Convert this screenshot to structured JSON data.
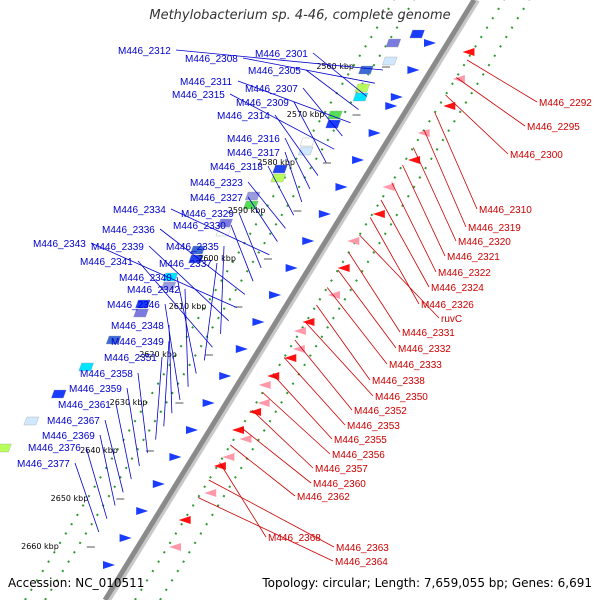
{
  "title": "Methylobacterium sp. 4-46, complete genome",
  "footer": {
    "accession": "Accession: NC_010511",
    "topology": "Topology: circular; Length: 7,659,055 bp; Genes: 6,691"
  },
  "colors": {
    "left_label": "#0000cc",
    "right_label": "#cc0000",
    "backbone": "#8a8a8a",
    "tick_dot": "#2e9a2e"
  },
  "kbp_ticks": [
    "2560 kbp",
    "2570 kbp",
    "2580 kbp",
    "2590 kbp",
    "2600 kbp",
    "2610 kbp",
    "2620 kbp",
    "2630 kbp",
    "2640 kbp",
    "2650 kbp",
    "2660 kbp"
  ],
  "left_genes": [
    "M446_2312",
    "M446_2308",
    "M446_2301",
    "M446_2305",
    "M446_2311",
    "M446_2307",
    "M446_2315",
    "M446_2309",
    "M446_2314",
    "M446_2316",
    "M446_2317",
    "M446_2318",
    "M446_2323",
    "M446_2327",
    "M446_2334",
    "M446_2329",
    "M446_2330",
    "M446_2336",
    "M446_2343",
    "M446_2339",
    "M446_2335",
    "M446_2341",
    "M446_2337",
    "M446_2340",
    "M446_2342",
    "M446_2346",
    "M446_2348",
    "M446_2349",
    "M446_2351",
    "M446_2358",
    "M446_2359",
    "M446_2361",
    "M446_2367",
    "M446_2369",
    "M446_2376",
    "M446_2377"
  ],
  "right_genes": [
    "M446_2292",
    "M446_2295",
    "M446_2300",
    "M446_2310",
    "M446_2319",
    "M446_2320",
    "M446_2321",
    "M446_2322",
    "M446_2324",
    "M446_2326",
    "ruvC",
    "M446_2331",
    "M446_2332",
    "M446_2333",
    "M446_2338",
    "M446_2350",
    "M446_2352",
    "M446_2353",
    "M446_2355",
    "M446_2356",
    "M446_2357",
    "M446_2360",
    "M446_2362",
    "M446_2368",
    "M446_2363",
    "M446_2364"
  ]
}
